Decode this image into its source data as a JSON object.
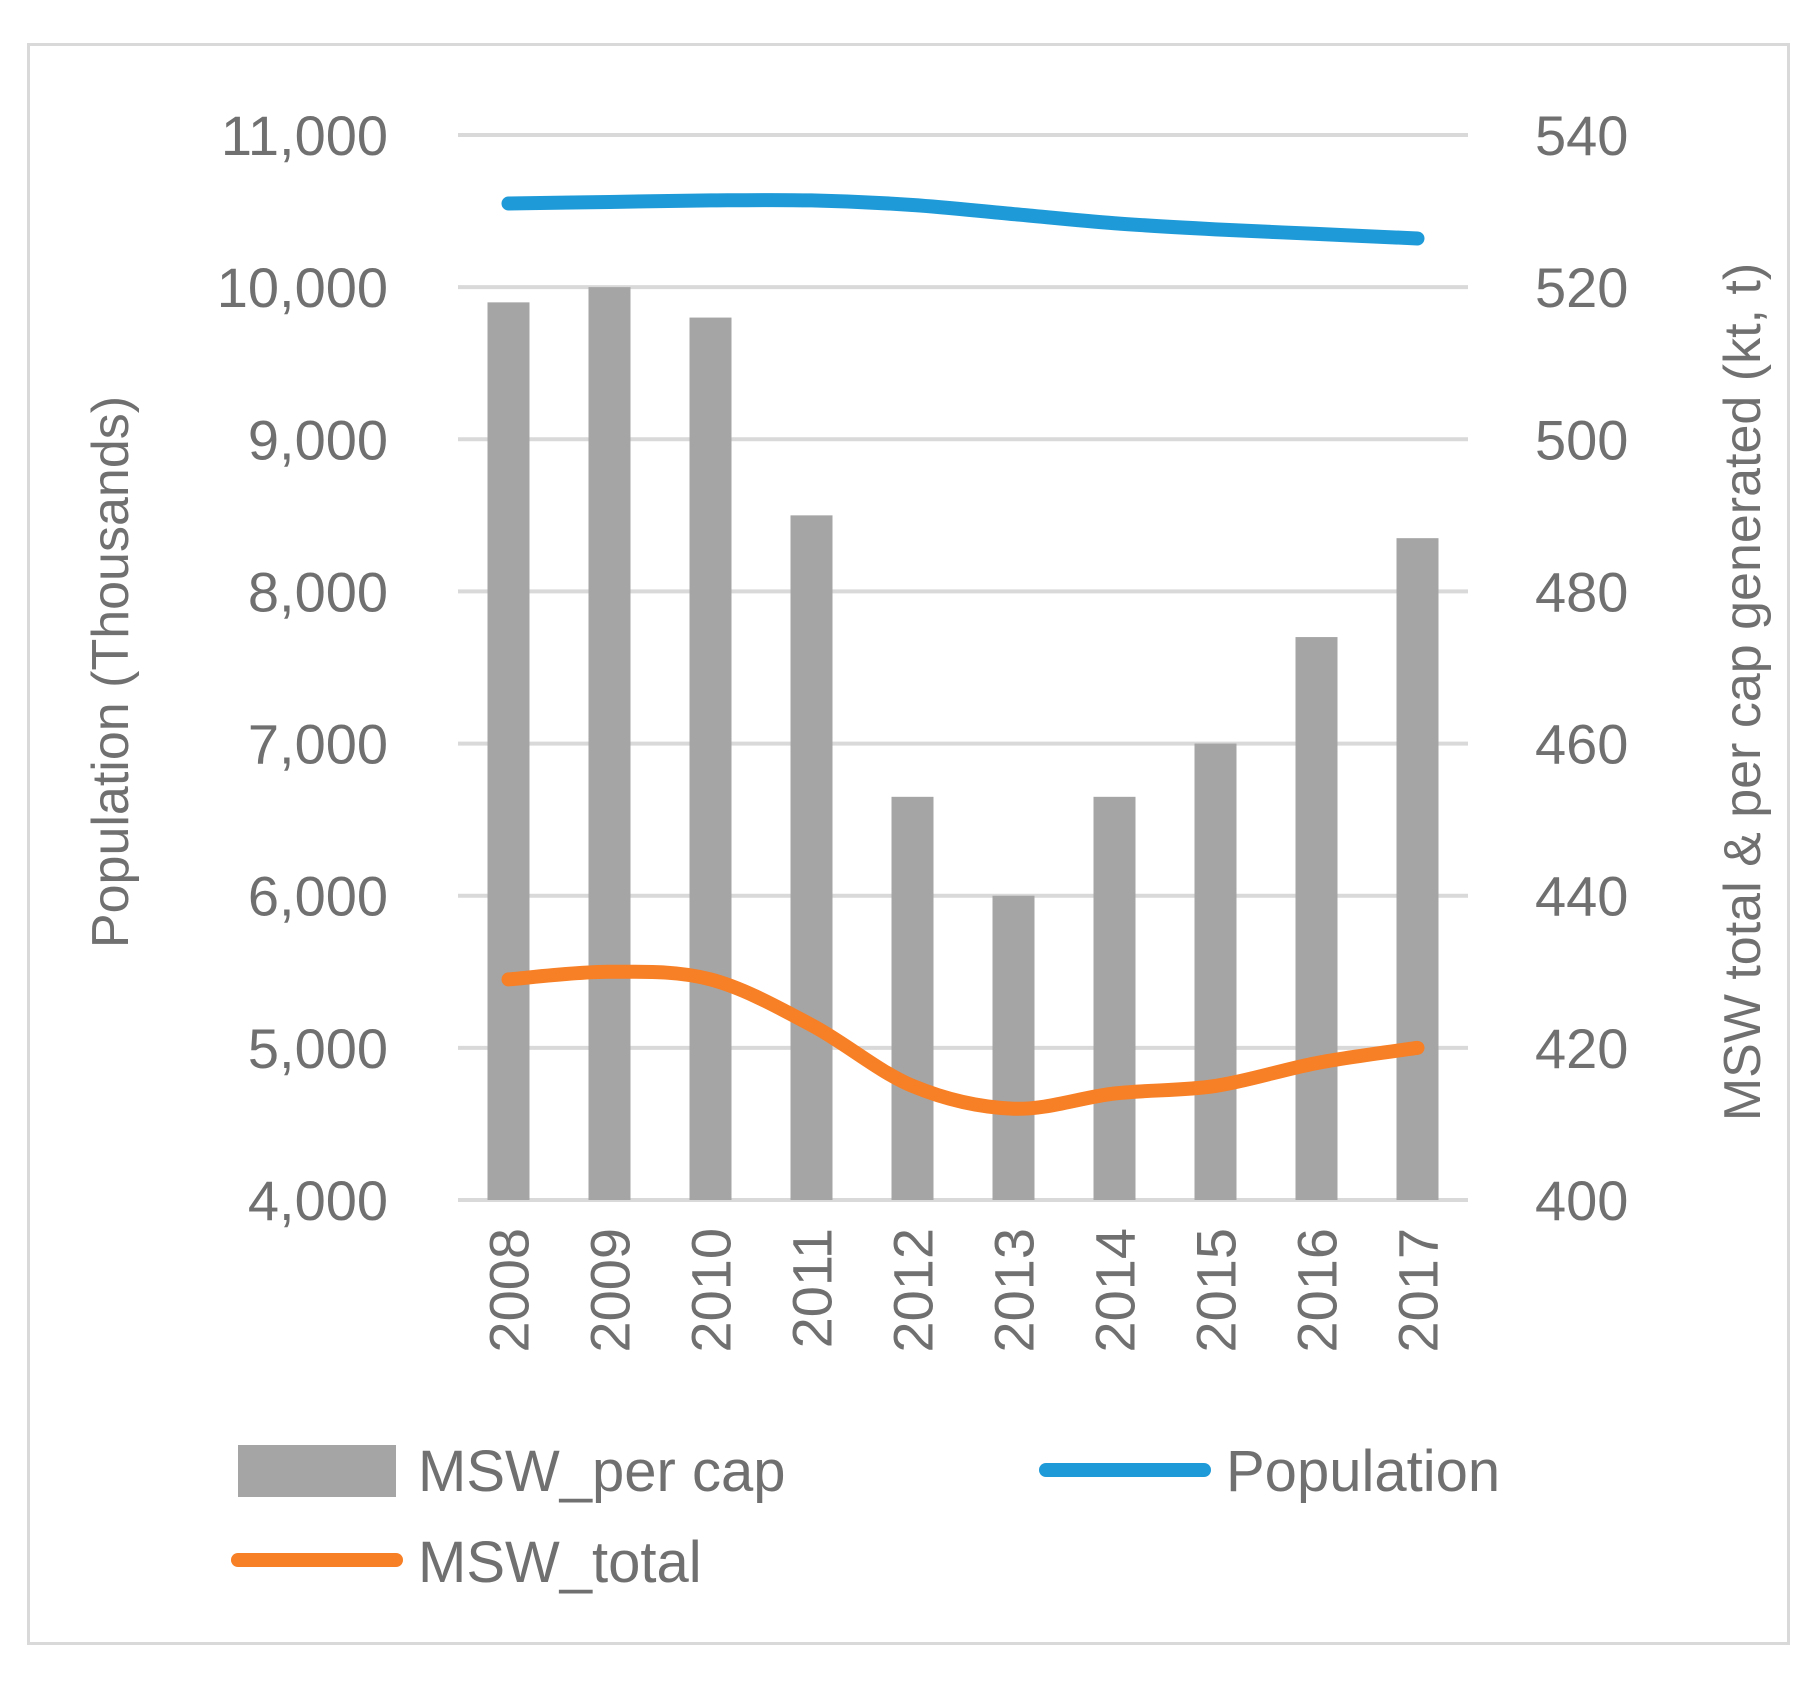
{
  "chart_data": {
    "type": "bar+line",
    "categories": [
      "2008",
      "2009",
      "2010",
      "2011",
      "2012",
      "2013",
      "2014",
      "2015",
      "2016",
      "2017"
    ],
    "y_left": {
      "label": "Population (Thousands)",
      "ylim": [
        4000,
        11000
      ],
      "ticks": [
        4000,
        5000,
        6000,
        7000,
        8000,
        9000,
        10000,
        11000
      ],
      "tick_labels": [
        "4,000",
        "5,000",
        "6,000",
        "7,000",
        "8,000",
        "9,000",
        "10,000",
        "11,000"
      ]
    },
    "y_right": {
      "label": "MSW total & per cap generated (kt, t)",
      "ylim": [
        400,
        540
      ],
      "ticks": [
        400,
        420,
        440,
        460,
        480,
        500,
        520,
        540
      ],
      "tick_labels": [
        "400",
        "420",
        "440",
        "460",
        "480",
        "500",
        "520",
        "540"
      ]
    },
    "grid": true,
    "legend_position": "bottom",
    "series": [
      {
        "name": "MSW_per cap",
        "type": "bar",
        "axis": "right",
        "color": "#a5a5a5",
        "values": [
          518,
          520,
          516,
          490,
          453,
          440,
          453,
          460,
          474,
          487
        ]
      },
      {
        "name": "Population",
        "type": "line",
        "axis": "left",
        "color": "#1f9ad8",
        "values": [
          10550,
          10560,
          10570,
          10570,
          10540,
          10480,
          10420,
          10380,
          10350,
          10320
        ]
      },
      {
        "name": "MSW_total",
        "type": "line",
        "axis": "right",
        "color": "#f77f25",
        "values": [
          429,
          430,
          429,
          423,
          415,
          412,
          414,
          415,
          418,
          420
        ]
      }
    ]
  }
}
